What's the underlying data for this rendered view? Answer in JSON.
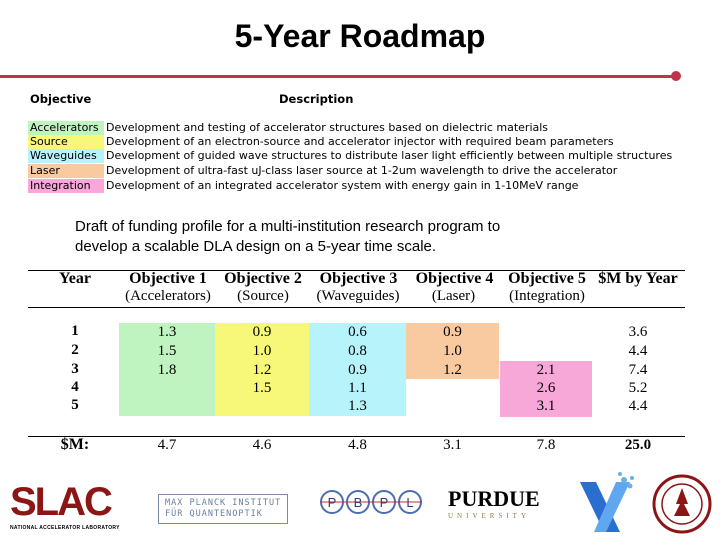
{
  "title": "5-Year Roadmap",
  "objectives_table": {
    "headers": {
      "objective": "Objective",
      "description": "Description"
    },
    "rows": [
      {
        "name": "Accelerators",
        "color": "#bff3bf",
        "description": "Development and testing of accelerator structures based on dielectric materials"
      },
      {
        "name": "Source",
        "color": "#f7f77a",
        "description": "Development of an electron-source and accelerator injector with required beam parameters"
      },
      {
        "name": "Waveguides",
        "color": "#b7f3fb",
        "description": "Development of guided wave structures to distribute laser light efficiently between multiple structures"
      },
      {
        "name": "Laser",
        "color": "#f9c9a0",
        "description": "Development of ultra-fast uJ-class laser source at 1-2um wavelength to drive the accelerator"
      },
      {
        "name": "Integration",
        "color": "#f7a8d8",
        "description": "Development of an integrated accelerator system with energy gain in 1-10MeV range"
      }
    ]
  },
  "draft_text": {
    "line1": "Draft of funding profile for a multi-institution research program to",
    "line2": "develop a scalable DLA design on a 5-year time scale."
  },
  "funding_table": {
    "headers": [
      {
        "title": "Year",
        "sub": ""
      },
      {
        "title": "Objective 1",
        "sub": "(Accelerators)"
      },
      {
        "title": "Objective 2",
        "sub": "(Source)"
      },
      {
        "title": "Objective 3",
        "sub": "(Waveguides)"
      },
      {
        "title": "Objective 4",
        "sub": "(Laser)"
      },
      {
        "title": "Objective 5",
        "sub": "(Integration)"
      },
      {
        "title": "$M by Year",
        "sub": ""
      }
    ],
    "rows": [
      {
        "year": "1",
        "o1": "1.3",
        "o2": "0.9",
        "o3": "0.6",
        "o4": "0.9",
        "o5": "",
        "total": "3.6"
      },
      {
        "year": "2",
        "o1": "1.5",
        "o2": "1.0",
        "o3": "0.8",
        "o4": "1.0",
        "o5": "",
        "total": "4.4"
      },
      {
        "year": "3",
        "o1": "1.8",
        "o2": "1.2",
        "o3": "0.9",
        "o4": "1.2",
        "o5": "2.1",
        "total": "7.4"
      },
      {
        "year": "4",
        "o1": "",
        "o2": "1.5",
        "o3": "1.1",
        "o4": "",
        "o5": "2.6",
        "total": "5.2"
      },
      {
        "year": "5",
        "o1": "",
        "o2": "",
        "o3": "1.3",
        "o4": "",
        "o5": "3.1",
        "total": "4.4"
      }
    ],
    "totals": {
      "label": "$M:",
      "o1": "4.7",
      "o2": "4.6",
      "o3": "4.8",
      "o4": "3.1",
      "o5": "7.8",
      "total": "25.0"
    }
  },
  "logos": {
    "slac": {
      "mark": "SLAC",
      "sub": "NATIONAL ACCELERATOR LABORATORY",
      "color": "#8c1515"
    },
    "mpi": {
      "line1": "MAX PLANCK INSTITUT",
      "line2": "FÜR QUANTENOPTIK"
    },
    "pbpl": {
      "letters": [
        "P",
        "B",
        "P",
        "L"
      ]
    },
    "purdue": {
      "name": "PURDUE",
      "sub": "UNIVERSITY"
    }
  }
}
